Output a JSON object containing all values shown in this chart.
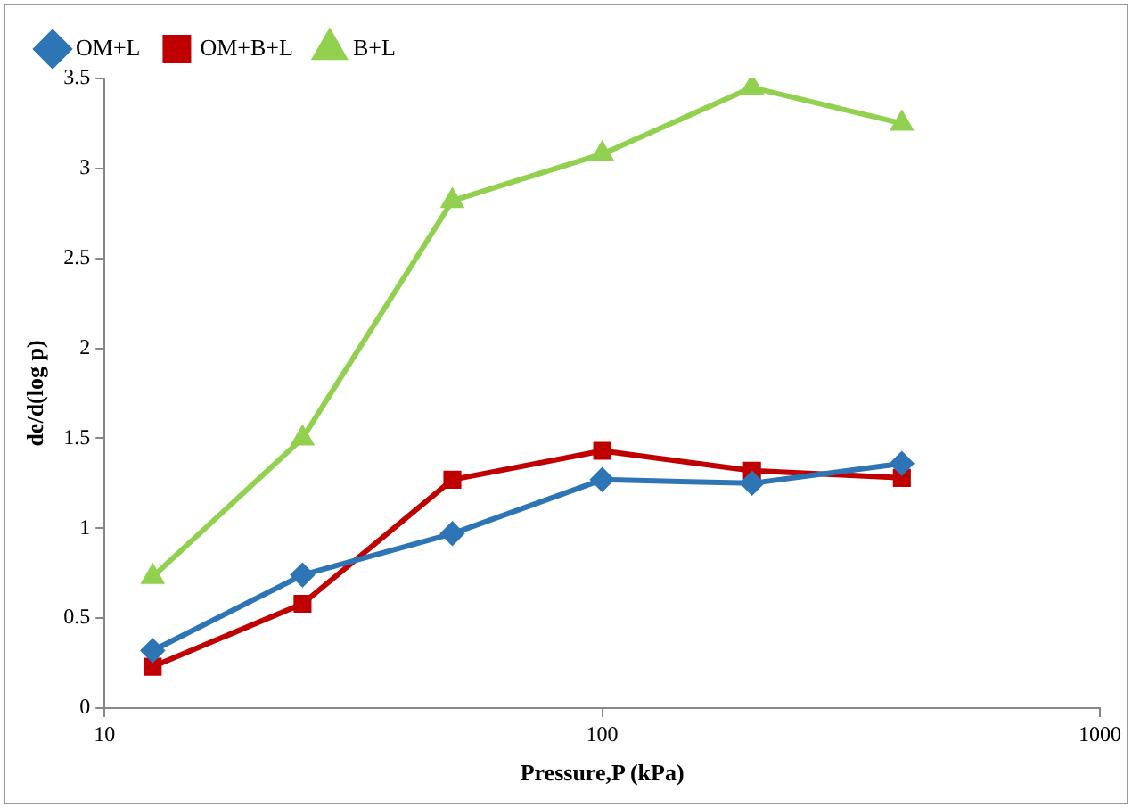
{
  "chart_data": {
    "type": "line",
    "xlabel": "Pressure,P (kPa)",
    "ylabel": "de/d(log p)",
    "x": [
      12.5,
      25,
      50,
      100,
      200,
      400
    ],
    "log": "x",
    "xlim": [
      10,
      1000
    ],
    "xticks": [
      10,
      100,
      1000
    ],
    "ylim": [
      0,
      3.5
    ],
    "yticks": [
      0,
      0.5,
      1,
      1.5,
      2,
      2.5,
      3,
      3.5
    ],
    "grid": false,
    "legend": "top left",
    "series": [
      {
        "name": "OM+L",
        "color": "#2e75b6",
        "marker": "diamond",
        "values": [
          0.32,
          0.74,
          0.97,
          1.27,
          1.25,
          1.36
        ]
      },
      {
        "name": "OM+B+L",
        "color": "#c00000",
        "marker": "square",
        "values": [
          0.23,
          0.58,
          1.27,
          1.43,
          1.32,
          1.28
        ]
      },
      {
        "name": "B+L",
        "color": "#92d050",
        "marker": "triangle",
        "values": [
          0.73,
          1.5,
          2.82,
          3.08,
          3.45,
          3.25
        ]
      }
    ]
  }
}
